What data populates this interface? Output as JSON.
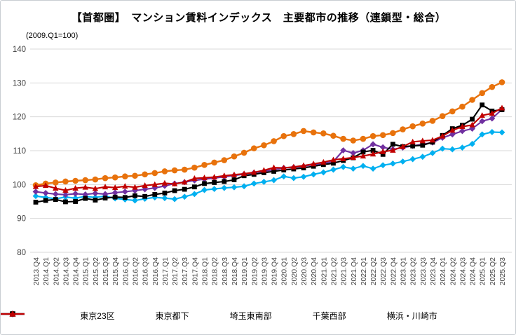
{
  "chart_data": {
    "type": "line",
    "title": "【首都圏】　マンション賃料インデックス　主要都市の推移（連鎖型・総合）",
    "note": "(2009.Q1=100)",
    "xlabel": "",
    "ylabel": "",
    "ylim": [
      80,
      140
    ],
    "yticks": [
      80,
      90,
      100,
      110,
      120,
      130,
      140
    ],
    "grid": true,
    "legend_position": "bottom",
    "x": [
      "2013.Q4",
      "2014.Q1",
      "2014.Q2",
      "2014.Q3",
      "2014.Q4",
      "2015.Q1",
      "2015.Q2",
      "2015.Q3",
      "2015.Q4",
      "2016.Q1",
      "2016.Q2",
      "2016.Q3",
      "2016.Q4",
      "2017.Q1",
      "2017.Q2",
      "2017.Q3",
      "2017.Q4",
      "2018.Q1",
      "2018.Q2",
      "2018.Q3",
      "2018.Q4",
      "2019.Q1",
      "2019.Q2",
      "2019.Q3",
      "2019.Q4",
      "2020.Q1",
      "2020.Q2",
      "2020.Q3",
      "2020.Q4",
      "2021.Q1",
      "2021.Q2",
      "2021.Q3",
      "2021.Q4",
      "2022.Q1",
      "2022.Q2",
      "2022.Q3",
      "2022.Q4",
      "2023.Q1",
      "2023.Q2",
      "2023.Q3",
      "2023.Q4",
      "2024.Q1",
      "2024.Q2",
      "2024.Q3",
      "2024.Q4",
      "2025.Q1",
      "2025.Q2",
      "2025.Q3"
    ],
    "series": [
      {
        "key": "tokyo-23-wards",
        "name": "東京23区",
        "color": "#E8720C",
        "marker": "circle",
        "values": [
          99.8,
          100.3,
          100.6,
          100.9,
          101.1,
          101.3,
          101.5,
          101.9,
          102.1,
          102.4,
          102.6,
          103.0,
          103.4,
          103.9,
          104.2,
          104.4,
          105.0,
          105.8,
          106.5,
          107.2,
          108.3,
          109.4,
          110.7,
          111.6,
          112.8,
          114.3,
          114.9,
          115.8,
          115.4,
          115.1,
          114.4,
          113.5,
          113.0,
          113.5,
          114.3,
          114.6,
          115.2,
          116.3,
          117.2,
          118.0,
          118.8,
          120.2,
          121.6,
          123.0,
          125.0,
          127.0,
          128.8,
          130.2
        ]
      },
      {
        "key": "tokyo-suburbs",
        "name": "東京都下",
        "color": "#00B0F0",
        "marker": "diamond",
        "values": [
          96.6,
          96.2,
          95.8,
          96.3,
          96.0,
          96.5,
          96.2,
          96.6,
          95.9,
          95.6,
          95.3,
          95.8,
          96.2,
          96.0,
          95.7,
          96.4,
          97.2,
          98.4,
          98.7,
          99.0,
          99.2,
          99.5,
          100.3,
          100.8,
          101.3,
          102.4,
          101.9,
          102.3,
          103.0,
          103.6,
          104.4,
          105.2,
          104.7,
          105.5,
          104.7,
          105.7,
          106.2,
          106.8,
          107.5,
          108.2,
          109.3,
          110.6,
          110.4,
          110.9,
          112.0,
          114.8,
          115.5,
          115.4
        ]
      },
      {
        "key": "saitama-southeast",
        "name": "埼玉東南部",
        "color": "#7030A0",
        "marker": "diamond",
        "values": [
          97.9,
          97.5,
          97.2,
          97.0,
          97.3,
          97.1,
          97.4,
          97.2,
          97.6,
          97.9,
          98.2,
          98.6,
          99.0,
          99.6,
          100.3,
          100.7,
          101.2,
          101.6,
          101.9,
          102.3,
          102.7,
          103.1,
          103.5,
          103.9,
          104.4,
          104.9,
          105.1,
          105.4,
          105.9,
          106.3,
          106.8,
          110.1,
          109.3,
          110.1,
          111.9,
          111.0,
          110.4,
          110.9,
          111.4,
          111.9,
          112.4,
          113.8,
          114.8,
          115.8,
          116.5,
          118.7,
          119.5,
          122.2
        ]
      },
      {
        "key": "chiba-west",
        "name": "千葉西部",
        "color": "#000000",
        "marker": "square",
        "values": [
          94.8,
          95.3,
          95.6,
          94.9,
          95.0,
          95.9,
          95.4,
          96.0,
          96.3,
          96.2,
          96.7,
          96.5,
          97.1,
          97.5,
          98.2,
          98.6,
          99.3,
          100.3,
          100.6,
          100.9,
          101.4,
          102.6,
          103.0,
          103.5,
          103.9,
          104.3,
          104.6,
          104.9,
          105.4,
          105.9,
          106.3,
          107.1,
          107.9,
          109.6,
          110.1,
          108.9,
          111.9,
          111.2,
          111.4,
          111.6,
          112.5,
          114.5,
          116.5,
          117.5,
          119.3,
          123.5,
          121.7,
          122.1
        ]
      },
      {
        "key": "yokohama-kawasaki",
        "name": "横浜・川崎市",
        "color": "#C00000",
        "marker": "triangle",
        "values": [
          99.4,
          99.7,
          98.9,
          98.3,
          98.9,
          99.2,
          98.8,
          99.3,
          99.1,
          99.5,
          99.2,
          99.7,
          100.0,
          100.4,
          100.2,
          100.7,
          101.8,
          102.0,
          102.2,
          102.6,
          102.9,
          103.2,
          103.6,
          104.2,
          105.0,
          104.9,
          105.2,
          105.6,
          106.1,
          106.6,
          107.3,
          107.6,
          108.0,
          108.4,
          109.0,
          109.7,
          110.1,
          111.2,
          112.6,
          112.9,
          113.1,
          114.3,
          116.0,
          117.1,
          117.6,
          120.4,
          121.0,
          122.6
        ]
      }
    ],
    "gridline_color": "#d9d9d9",
    "tick_label_color": "#404040"
  }
}
